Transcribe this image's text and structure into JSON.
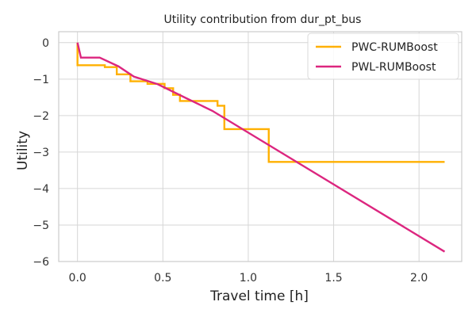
{
  "chart_data": {
    "type": "line",
    "title": "Utility contribution from dur_pt_bus",
    "xlabel": "Travel time [h]",
    "ylabel": "Utility",
    "xlim": [
      -0.11,
      2.25
    ],
    "ylim": [
      -6,
      0.3
    ],
    "xticks": [
      0.0,
      0.5,
      1.0,
      1.5,
      2.0
    ],
    "xtick_labels": [
      "0.0",
      "0.5",
      "1.0",
      "1.5",
      "2.0"
    ],
    "yticks": [
      0,
      -1,
      -2,
      -3,
      -4,
      -5,
      -6
    ],
    "ytick_labels": [
      "0",
      "−1",
      "−2",
      "−3",
      "−4",
      "−5",
      "−6"
    ],
    "grid": true,
    "legend_position": "top-right",
    "series": [
      {
        "name": "PWC-RUMBoost",
        "color": "#FFB000",
        "style": "step",
        "x": [
          0.0,
          0.0,
          0.16,
          0.16,
          0.23,
          0.23,
          0.31,
          0.31,
          0.41,
          0.41,
          0.51,
          0.51,
          0.56,
          0.56,
          0.6,
          0.6,
          0.82,
          0.82,
          0.86,
          0.86,
          1.12,
          1.12,
          2.15
        ],
        "y": [
          0.0,
          -0.62,
          -0.62,
          -0.67,
          -0.67,
          -0.87,
          -0.87,
          -1.06,
          -1.06,
          -1.13,
          -1.13,
          -1.25,
          -1.25,
          -1.43,
          -1.43,
          -1.6,
          -1.6,
          -1.73,
          -1.73,
          -2.37,
          -2.37,
          -3.27,
          -3.27
        ]
      },
      {
        "name": "PWL-RUMBoost",
        "color": "#DC267F",
        "style": "line",
        "x": [
          0.0,
          0.02,
          0.13,
          0.24,
          0.33,
          0.47,
          0.64,
          0.79,
          2.15
        ],
        "y": [
          0.0,
          -0.41,
          -0.41,
          -0.65,
          -0.93,
          -1.14,
          -1.53,
          -1.87,
          -5.73
        ]
      }
    ]
  }
}
